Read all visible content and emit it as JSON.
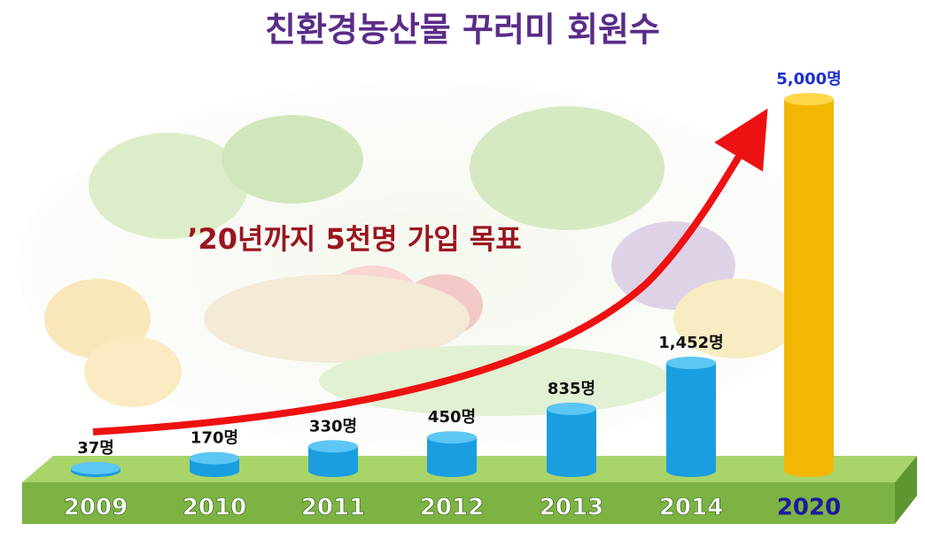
{
  "chart_data": {
    "type": "bar",
    "title": "친환경농산물 꾸러미 회원수",
    "annotation": "’20년까지 5천명 가입 목표",
    "categories": [
      "2009",
      "2010",
      "2011",
      "2012",
      "2013",
      "2014",
      "2020"
    ],
    "values": [
      37,
      170,
      330,
      450,
      835,
      1452,
      5000
    ],
    "value_labels": [
      "37명",
      "170명",
      "330명",
      "450명",
      "835명",
      "1,452명",
      "5,000명"
    ],
    "colors": [
      "#1a9ee0",
      "#1a9ee0",
      "#1a9ee0",
      "#1a9ee0",
      "#1a9ee0",
      "#1a9ee0",
      "#f2b705"
    ]
  }
}
